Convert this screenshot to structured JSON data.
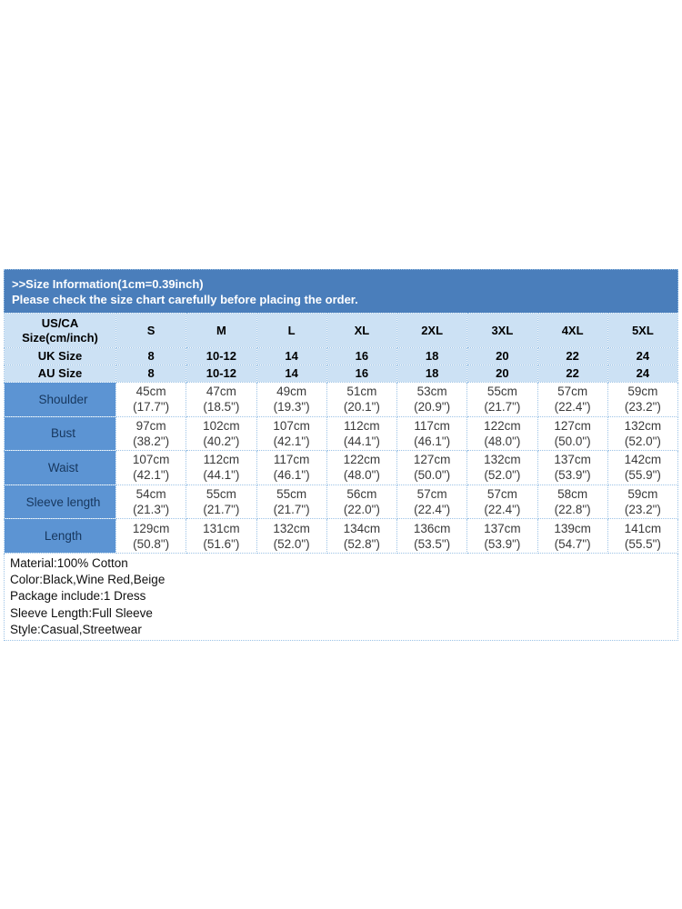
{
  "banner": {
    "line1": ">>Size Information(1cm=0.39inch)",
    "line2": "Please check the size chart carefully before placing the order."
  },
  "table": {
    "corner_label": "US/CA Size(cm/inch)",
    "size_columns": [
      "S",
      "M",
      "L",
      "XL",
      "2XL",
      "3XL",
      "4XL",
      "5XL"
    ],
    "size_rows": [
      {
        "label": "UK Size",
        "values": [
          "8",
          "10-12",
          "14",
          "16",
          "18",
          "20",
          "22",
          "24"
        ]
      },
      {
        "label": "AU Size",
        "values": [
          "8",
          "10-12",
          "14",
          "16",
          "18",
          "20",
          "22",
          "24"
        ]
      }
    ],
    "measurement_rows": [
      {
        "label": "Shoulder",
        "cm": [
          "45cm",
          "47cm",
          "49cm",
          "51cm",
          "53cm",
          "55cm",
          "57cm",
          "59cm"
        ],
        "inch": [
          "(17.7\")",
          "(18.5\")",
          "(19.3\")",
          "(20.1\")",
          "(20.9\")",
          "(21.7\")",
          "(22.4\")",
          "(23.2\")"
        ]
      },
      {
        "label": "Bust",
        "cm": [
          "97cm",
          "102cm",
          "107cm",
          "112cm",
          "117cm",
          "122cm",
          "127cm",
          "132cm"
        ],
        "inch": [
          "(38.2\")",
          "(40.2\")",
          "(42.1\")",
          "(44.1\")",
          "(46.1\")",
          "(48.0\")",
          "(50.0\")",
          "(52.0\")"
        ]
      },
      {
        "label": "Waist",
        "cm": [
          "107cm",
          "112cm",
          "117cm",
          "122cm",
          "127cm",
          "132cm",
          "137cm",
          "142cm"
        ],
        "inch": [
          "(42.1\")",
          "(44.1\")",
          "(46.1\")",
          "(48.0\")",
          "(50.0\")",
          "(52.0\")",
          "(53.9\")",
          "(55.9\")"
        ]
      },
      {
        "label": "Sleeve length",
        "cm": [
          "54cm",
          "55cm",
          "55cm",
          "56cm",
          "57cm",
          "57cm",
          "58cm",
          "59cm"
        ],
        "inch": [
          "(21.3\")",
          "(21.7\")",
          "(21.7\")",
          "(22.0\")",
          "(22.4\")",
          "(22.4\")",
          "(22.8\")",
          "(23.2\")"
        ]
      },
      {
        "label": "Length",
        "cm": [
          "129cm",
          "131cm",
          "132cm",
          "134cm",
          "136cm",
          "137cm",
          "139cm",
          "141cm"
        ],
        "inch": [
          "(50.8\")",
          "(51.6\")",
          "(52.0\")",
          "(52.8\")",
          "(53.5\")",
          "(53.9\")",
          "(54.7\")",
          "(55.5\")"
        ]
      }
    ]
  },
  "details": {
    "lines": [
      "Material:100% Cotton",
      "Color:Black,Wine Red,Beige",
      "Package include:1 Dress",
      "Sleeve Length:Full Sleeve",
      "Style:Casual,Streetwear"
    ]
  },
  "colors": {
    "banner_bg": "#4a7ebb",
    "banner_text": "#ffffff",
    "header_bg": "#cce1f4",
    "label_bg": "#5c94d3",
    "label_text": "#17375e",
    "grid": "#9dc3e6",
    "data_text": "#3a3a3a"
  }
}
